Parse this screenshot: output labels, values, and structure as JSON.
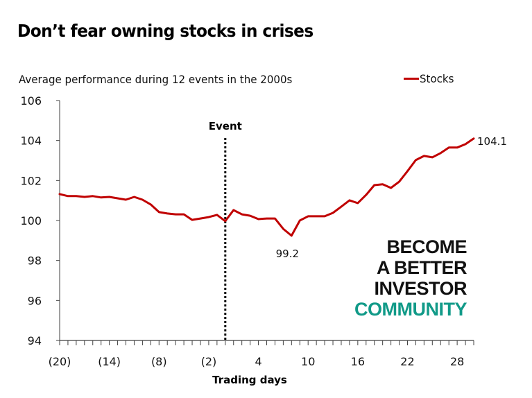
{
  "chart_data": {
    "type": "line",
    "title": "Don’t fear owning stocks in crises",
    "subtitle": "Average performance during 12 events in the 2000s",
    "xlabel": "Trading days",
    "ylabel": "",
    "xlim": [
      -20,
      30
    ],
    "ylim": [
      94,
      106
    ],
    "yticks": [
      94,
      96,
      98,
      100,
      102,
      104,
      106
    ],
    "ytick_labels": [
      "94",
      "96",
      "98",
      "100",
      "102",
      "104",
      "106"
    ],
    "xticks": [
      -20,
      -14,
      -8,
      -2,
      4,
      10,
      16,
      22,
      28
    ],
    "xtick_labels": [
      "(20)",
      "(14)",
      "(8)",
      "(2)",
      "4",
      "10",
      "16",
      "22",
      "28"
    ],
    "grid": false,
    "legend": {
      "position": "top-right",
      "entries": [
        "Stocks"
      ]
    },
    "event_marker": {
      "x": 0,
      "label": "Event",
      "style": "dotted"
    },
    "annotations": [
      {
        "x": 8,
        "y": 99.2,
        "text": "99.2"
      },
      {
        "x": 30,
        "y": 104.1,
        "text": "104.1"
      }
    ],
    "x": [
      -20,
      -19,
      -18,
      -17,
      -16,
      -15,
      -14,
      -13,
      -12,
      -11,
      -10,
      -9,
      -8,
      -7,
      -6,
      -5,
      -4,
      -3,
      -2,
      -1,
      0,
      1,
      2,
      3,
      4,
      5,
      6,
      7,
      8,
      9,
      10,
      11,
      12,
      13,
      14,
      15,
      16,
      17,
      18,
      19,
      20,
      21,
      22,
      23,
      24,
      25,
      26,
      27,
      28,
      29,
      30
    ],
    "series": [
      {
        "name": "Stocks",
        "color": "#c00000",
        "values": [
          101.32,
          101.22,
          101.22,
          101.18,
          101.22,
          101.15,
          101.18,
          101.11,
          101.04,
          101.18,
          101.04,
          100.8,
          100.42,
          100.35,
          100.31,
          100.31,
          100.03,
          100.1,
          100.17,
          100.28,
          99.97,
          100.52,
          100.31,
          100.24,
          100.07,
          100.1,
          100.1,
          99.58,
          99.24,
          100.0,
          100.21,
          100.21,
          100.21,
          100.38,
          100.69,
          101.01,
          100.87,
          101.28,
          101.77,
          101.81,
          101.63,
          101.94,
          102.47,
          103.02,
          103.23,
          103.16,
          103.37,
          103.65,
          103.65,
          103.82,
          104.1
        ]
      }
    ]
  },
  "brand": {
    "line1": "BECOME",
    "line2": "A BETTER",
    "line3": "INVESTOR",
    "line4": "COMMUNITY",
    "accent_color": "#119a88"
  }
}
